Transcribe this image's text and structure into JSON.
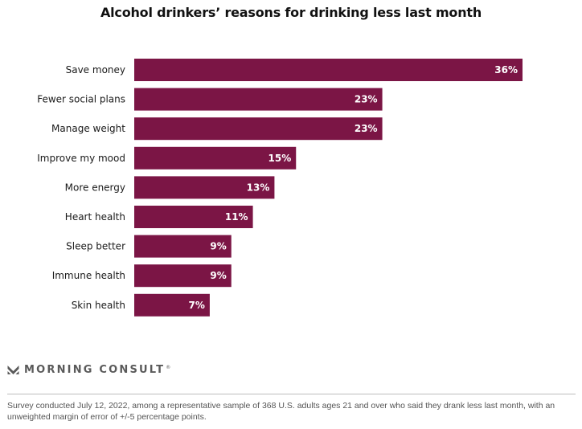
{
  "chart_data": {
    "type": "bar",
    "orientation": "horizontal",
    "title": "Alcohol drinkers’ reasons for drinking less last month",
    "categories": [
      "Save money",
      "Fewer social plans",
      "Manage weight",
      "Improve my mood",
      "More energy",
      "Heart health",
      "Sleep better",
      "Immune health",
      "Skin health"
    ],
    "values": [
      36,
      23,
      23,
      15,
      13,
      11,
      9,
      9,
      7
    ],
    "value_labels": [
      "36%",
      "23%",
      "23%",
      "15%",
      "13%",
      "11%",
      "9%",
      "9%",
      "7%"
    ],
    "unit": "%",
    "xlim": [
      0,
      36
    ],
    "grid": false,
    "bar_color": "#7b1545"
  },
  "logo": {
    "text": "MORNING CONSULT",
    "trademark": "®",
    "icon": "morning-consult-m-icon"
  },
  "footnote": "Survey conducted July 12, 2022, among a representative sample of 368 U.S. adults ages 21 and over who said they drank less last month, with an unweighted margin of error of +/-5 percentage points."
}
